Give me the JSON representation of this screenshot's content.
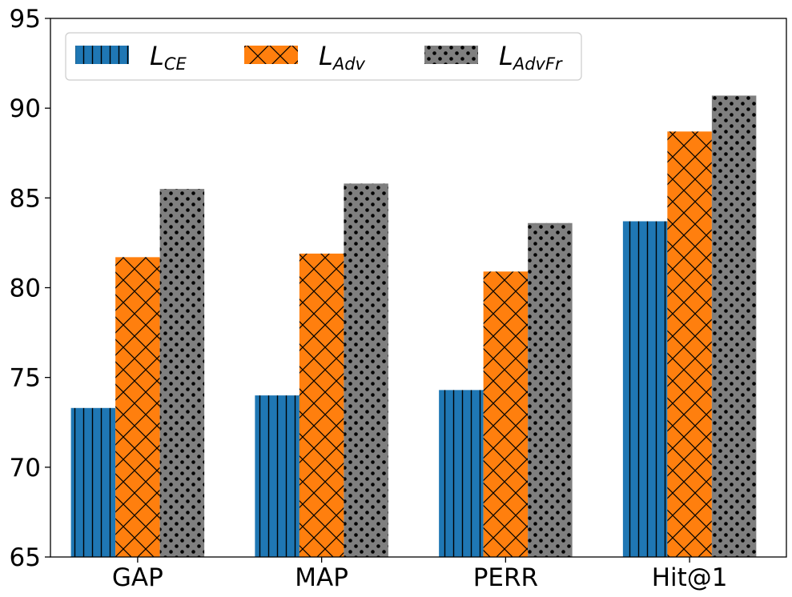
{
  "chart_data": {
    "type": "bar",
    "title": "",
    "xlabel": "",
    "ylabel": "",
    "categories": [
      "GAP",
      "MAP",
      "PERR",
      "Hit@1"
    ],
    "series": [
      {
        "name": "L_CE",
        "legend_main": "L",
        "legend_sub": "CE",
        "color": "#1f77b4",
        "hatch": "vertical-lines",
        "values": [
          73.3,
          74.0,
          74.3,
          83.7
        ]
      },
      {
        "name": "L_Adv",
        "legend_main": "L",
        "legend_sub": "Adv",
        "color": "#ff7f0e",
        "hatch": "crosshatch",
        "values": [
          81.7,
          81.9,
          80.9,
          88.7
        ]
      },
      {
        "name": "L_AdvFr",
        "legend_main": "L",
        "legend_sub": "AdvFr",
        "color": "#7f7f7f",
        "hatch": "dots",
        "values": [
          85.5,
          85.8,
          83.6,
          90.7
        ]
      }
    ],
    "ylim": [
      65,
      95
    ],
    "yticks": [
      65,
      70,
      75,
      80,
      85,
      90,
      95
    ],
    "grid": false,
    "legend_position": "top-left"
  }
}
